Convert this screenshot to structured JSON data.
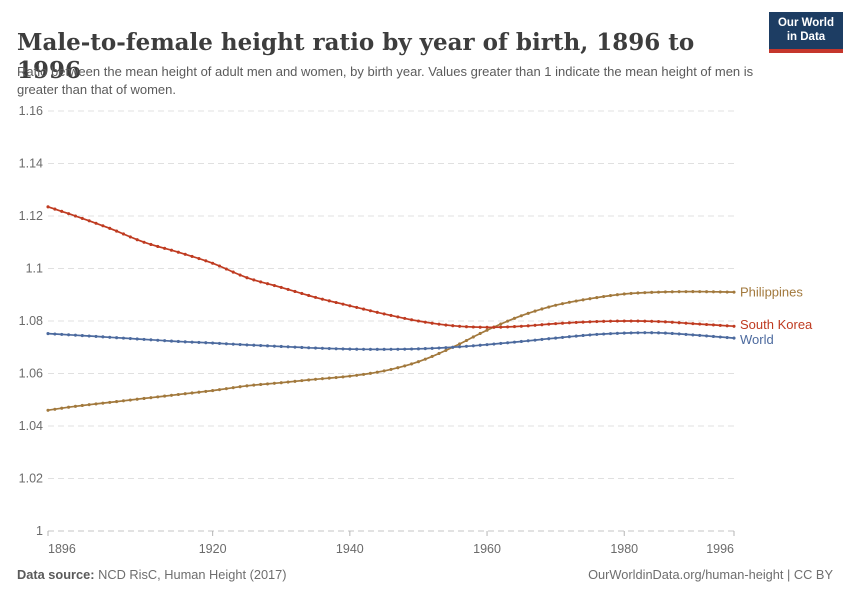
{
  "logo": {
    "text_line1": "Our World",
    "text_line2": "in Data",
    "bg_color": "#1d3d63",
    "bar_color": "#c5362c"
  },
  "header": {
    "title": "Male-to-female height ratio by year of birth, 1896 to 1996",
    "subtitle": "Ratio between the mean height of adult men and women, by birth year. Values greater than 1 indicate the mean height of men is greater than that of women."
  },
  "footer": {
    "source_label": "Data source:",
    "source_value": "NCD RisC, Human Height (2017)",
    "credit": "OurWorldinData.org/human-height | CC BY"
  },
  "chart_data": {
    "type": "line",
    "title": "Male-to-female height ratio by year of birth, 1896 to 1996",
    "xlabel": "",
    "ylabel": "",
    "xlim": [
      1896,
      1996
    ],
    "ylim": [
      1,
      1.16
    ],
    "grid": "horizontal-dashed",
    "legend_position": "right-end-labels",
    "x_ticks": [
      {
        "value": 1896,
        "label": "1896"
      },
      {
        "value": 1920,
        "label": "1920"
      },
      {
        "value": 1940,
        "label": "1940"
      },
      {
        "value": 1960,
        "label": "1960"
      },
      {
        "value": 1980,
        "label": "1980"
      },
      {
        "value": 1996,
        "label": "1996"
      }
    ],
    "y_ticks": [
      {
        "value": 1,
        "label": "1"
      },
      {
        "value": 1.02,
        "label": "1.02"
      },
      {
        "value": 1.04,
        "label": "1.04"
      },
      {
        "value": 1.06,
        "label": "1.06"
      },
      {
        "value": 1.08,
        "label": "1.08"
      },
      {
        "value": 1.1,
        "label": "1.1"
      },
      {
        "value": 1.12,
        "label": "1.12"
      },
      {
        "value": 1.14,
        "label": "1.14"
      },
      {
        "value": 1.16,
        "label": "1.16"
      }
    ],
    "marker_every_years": 1,
    "series": [
      {
        "name": "Philippines",
        "color": "#a2793d",
        "x": [
          1896,
          1900,
          1905,
          1910,
          1915,
          1920,
          1925,
          1930,
          1935,
          1940,
          1945,
          1950,
          1955,
          1960,
          1965,
          1970,
          1975,
          1980,
          1985,
          1990,
          1996
        ],
        "y": [
          1.046,
          1.0475,
          1.049,
          1.0505,
          1.052,
          1.0535,
          1.0553,
          1.0565,
          1.0578,
          1.059,
          1.061,
          1.0645,
          1.07,
          1.0765,
          1.082,
          1.086,
          1.0885,
          1.0903,
          1.091,
          1.0912,
          1.091
        ]
      },
      {
        "name": "South Korea",
        "color": "#bf3b21",
        "x": [
          1896,
          1900,
          1905,
          1910,
          1915,
          1920,
          1925,
          1930,
          1935,
          1940,
          1945,
          1950,
          1955,
          1960,
          1965,
          1970,
          1975,
          1980,
          1985,
          1990,
          1996
        ],
        "y": [
          1.1235,
          1.12,
          1.1153,
          1.11,
          1.1062,
          1.102,
          1.0965,
          1.0928,
          1.089,
          1.0858,
          1.0827,
          1.08,
          1.0782,
          1.0776,
          1.078,
          1.079,
          1.0797,
          1.08,
          1.0798,
          1.079,
          1.078
        ]
      },
      {
        "name": "World",
        "color": "#4c6a9e",
        "x": [
          1896,
          1900,
          1905,
          1910,
          1915,
          1920,
          1925,
          1930,
          1935,
          1940,
          1945,
          1950,
          1955,
          1960,
          1965,
          1970,
          1975,
          1980,
          1985,
          1990,
          1996
        ],
        "y": [
          1.0752,
          1.0746,
          1.0738,
          1.073,
          1.0722,
          1.0716,
          1.0709,
          1.0703,
          1.0697,
          1.0693,
          1.0692,
          1.0694,
          1.07,
          1.071,
          1.0722,
          1.0735,
          1.0747,
          1.0754,
          1.0755,
          1.0747,
          1.0735
        ]
      }
    ]
  }
}
